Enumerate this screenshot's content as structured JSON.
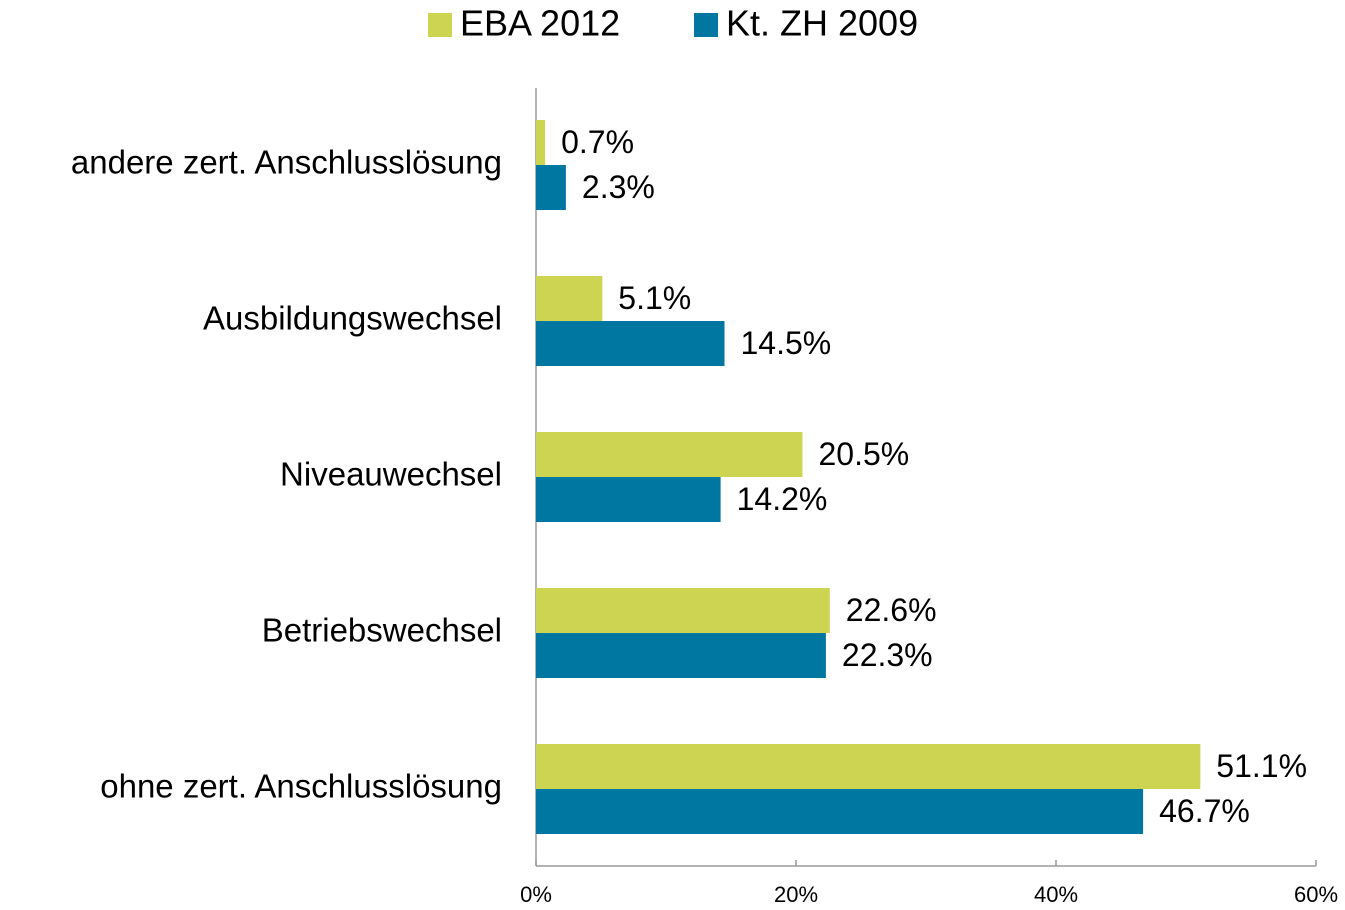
{
  "chart_data": {
    "type": "hbar",
    "categories": [
      "andere zert. Anschlusslösung",
      "Ausbildungswechsel",
      "Niveauwechsel",
      "Betriebswechsel",
      "ohne zert. Anschlusslösung"
    ],
    "series": [
      {
        "name": "EBA 2012",
        "color": "#cdd452",
        "values": [
          0.7,
          5.1,
          20.5,
          22.6,
          51.1
        ],
        "value_labels": [
          "0.7%",
          "5.1%",
          "20.5%",
          "22.6%",
          "51.1%"
        ]
      },
      {
        "name": "Kt. ZH 2009",
        "color": "#0077a0",
        "values": [
          2.3,
          14.5,
          14.2,
          22.3,
          46.7
        ],
        "value_labels": [
          "2.3%",
          "14.5%",
          "14.2%",
          "22.3%",
          "46.7%"
        ]
      }
    ],
    "xlim": [
      0,
      60
    ],
    "xticks": [
      {
        "value": 0,
        "label": "0%"
      },
      {
        "value": 20,
        "label": "20%"
      },
      {
        "value": 40,
        "label": "40%"
      },
      {
        "value": 60,
        "label": "60%"
      }
    ],
    "legend": "top"
  }
}
